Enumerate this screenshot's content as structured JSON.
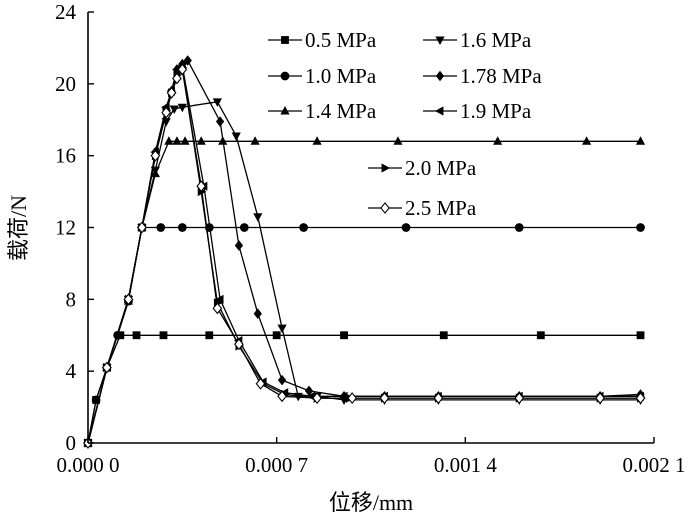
{
  "chart_data": {
    "type": "line",
    "title": "",
    "xlabel": "位移/mm",
    "ylabel": "载荷/N",
    "xlim": [
      0,
      0.0021
    ],
    "ylim": [
      0,
      24
    ],
    "x_ticks": [
      0,
      0.0007,
      0.0014,
      0.0021
    ],
    "x_tick_labels": [
      "0.000 0",
      "0.000 7",
      "0.001 4",
      "0.002 1"
    ],
    "y_ticks": [
      0,
      4,
      8,
      12,
      16,
      20,
      24
    ],
    "y_tick_labels": [
      "0",
      "4",
      "8",
      "12",
      "16",
      "20",
      "24"
    ],
    "grid": false,
    "legend_position": "top-right",
    "series": [
      {
        "name": "0.5 MPa",
        "marker": "square",
        "x": [
          0,
          3e-05,
          7e-05,
          0.00012,
          0.00018,
          0.00028,
          0.00045,
          0.0007,
          0.00095,
          0.00132,
          0.00168,
          0.00205
        ],
        "y": [
          0,
          2.4,
          4.2,
          6.0,
          6.0,
          6.0,
          6.0,
          6.0,
          6.0,
          6.0,
          6.0,
          6.0
        ]
      },
      {
        "name": "1.0 MPa",
        "marker": "circle",
        "x": [
          0,
          3e-05,
          7e-05,
          0.00011,
          0.00015,
          0.0002,
          0.00027,
          0.00035,
          0.00045,
          0.00058,
          0.0008,
          0.00118,
          0.0016,
          0.00205
        ],
        "y": [
          0,
          2.4,
          4.2,
          6.0,
          7.9,
          12.0,
          12.0,
          12.0,
          12.0,
          12.0,
          12.0,
          12.0,
          12.0,
          12.0
        ]
      },
      {
        "name": "1.4 MPa",
        "marker": "triangle-up",
        "x": [
          0,
          7e-05,
          0.00015,
          0.0002,
          0.00025,
          0.0003,
          0.00033,
          0.00036,
          0.00042,
          0.0005,
          0.00062,
          0.00085,
          0.00115,
          0.00152,
          0.00185,
          0.00205
        ],
        "y": [
          0,
          4.2,
          7.9,
          12.0,
          15.0,
          16.8,
          16.8,
          16.8,
          16.8,
          16.8,
          16.8,
          16.8,
          16.8,
          16.8,
          16.8,
          16.8
        ]
      },
      {
        "name": "1.6 MPa",
        "marker": "triangle-down",
        "x": [
          0,
          7e-05,
          0.00015,
          0.0002,
          0.00025,
          0.00029,
          0.00032,
          0.00035,
          0.00048,
          0.00055,
          0.00063,
          0.00072,
          0.00078,
          0.00085,
          0.00095,
          0.0011,
          0.0013,
          0.0016,
          0.0019,
          0.00205
        ],
        "y": [
          0,
          4.2,
          8.0,
          12.0,
          15.2,
          17.9,
          18.6,
          18.7,
          19.0,
          17.1,
          12.6,
          6.4,
          2.6,
          2.6,
          2.4,
          2.4,
          2.4,
          2.4,
          2.4,
          2.4
        ]
      },
      {
        "name": "1.78 MPa",
        "marker": "diamond",
        "x": [
          0,
          7e-05,
          0.00015,
          0.0002,
          0.00025,
          0.00029,
          0.00031,
          0.00033,
          0.00035,
          0.00037,
          0.00049,
          0.00056,
          0.00063,
          0.00072,
          0.00082,
          0.00095,
          0.0011,
          0.0013,
          0.0016,
          0.0019,
          0.00205
        ],
        "y": [
          0,
          4.2,
          8.0,
          12.0,
          16.2,
          18.6,
          19.6,
          20.8,
          21.1,
          21.3,
          17.9,
          11.0,
          7.2,
          3.5,
          2.9,
          2.6,
          2.6,
          2.6,
          2.6,
          2.6,
          2.7
        ]
      },
      {
        "name": "1.9 MPa",
        "marker": "triangle-left",
        "x": [
          0,
          7e-05,
          0.00015,
          0.0002,
          0.00025,
          0.00029,
          0.00031,
          0.00033,
          0.00035,
          0.00043,
          0.00049,
          0.00056,
          0.00065,
          0.00073,
          0.00083,
          0.00095,
          0.0011,
          0.0013,
          0.0016,
          0.0019,
          0.00205
        ],
        "y": [
          0,
          4.2,
          8.0,
          12.0,
          16.2,
          18.7,
          19.6,
          20.8,
          21.0,
          14.3,
          8.0,
          5.7,
          3.4,
          2.8,
          2.6,
          2.6,
          2.6,
          2.6,
          2.6,
          2.6,
          2.6
        ]
      },
      {
        "name": "2.0 MPa",
        "marker": "triangle-right",
        "x": [
          0,
          7e-05,
          0.00015,
          0.0002,
          0.00025,
          0.00029,
          0.00031,
          0.00033,
          0.00035,
          0.00042,
          0.00048,
          0.00056,
          0.00065,
          0.00073,
          0.00085,
          0.00097,
          0.0011,
          0.0013,
          0.0016,
          0.0019,
          0.00205
        ],
        "y": [
          0,
          4.2,
          8.0,
          12.0,
          16.0,
          18.5,
          19.5,
          20.5,
          20.9,
          14.0,
          7.8,
          5.4,
          3.3,
          2.7,
          2.5,
          2.5,
          2.5,
          2.5,
          2.5,
          2.5,
          2.5
        ]
      },
      {
        "name": "2.5 MPa",
        "marker": "diamond-open",
        "x": [
          0,
          7e-05,
          0.00015,
          0.0002,
          0.00025,
          0.00029,
          0.00031,
          0.00033,
          0.00035,
          0.00042,
          0.00048,
          0.00056,
          0.00064,
          0.00072,
          0.00085,
          0.00098,
          0.0011,
          0.0013,
          0.0016,
          0.0019,
          0.00205
        ],
        "y": [
          0,
          4.2,
          8.0,
          12.0,
          16.0,
          18.4,
          19.5,
          20.3,
          20.8,
          14.3,
          7.5,
          5.5,
          3.3,
          2.6,
          2.5,
          2.5,
          2.5,
          2.5,
          2.5,
          2.5,
          2.5
        ]
      }
    ]
  }
}
